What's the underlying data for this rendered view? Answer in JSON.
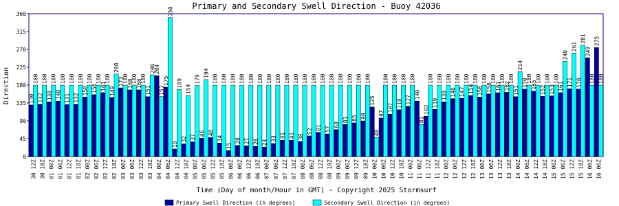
{
  "chart_data": {
    "type": "bar",
    "title": "Primary and Secondary Swell Direction - Buoy 42036",
    "x_label": "Time (Day of month/Hour in GMT) - Copyright 2025 Stormsurf",
    "y_label": "Direction",
    "categories": [
      "30 12Z",
      "30 18Z",
      "01 00Z",
      "01 06Z",
      "01 12Z",
      "01 18Z",
      "02 00Z",
      "02 06Z",
      "02 12Z",
      "02 18Z",
      "03 00Z",
      "03 06Z",
      "03 12Z",
      "03 18Z",
      "04 00Z",
      "04 06Z",
      "04 12Z",
      "04 18Z",
      "05 00Z",
      "05 06Z",
      "05 12Z",
      "05 18Z",
      "06 00Z",
      "06 06Z",
      "06 12Z",
      "06 18Z",
      "07 00Z",
      "07 06Z",
      "07 12Z",
      "07 18Z",
      "08 00Z",
      "08 06Z",
      "08 12Z",
      "08 18Z",
      "09 00Z",
      "09 06Z",
      "09 12Z",
      "09 18Z",
      "10 00Z",
      "10 06Z",
      "10 12Z",
      "10 18Z",
      "11 00Z",
      "11 06Z",
      "11 12Z",
      "11 18Z",
      "12 00Z",
      "12 06Z",
      "12 12Z",
      "12 18Z",
      "13 00Z",
      "13 06Z",
      "13 12Z",
      "13 18Z",
      "14 00Z",
      "14 06Z",
      "14 12Z",
      "14 18Z",
      "15 00Z",
      "15 06Z",
      "15 12Z",
      "15 18Z",
      "16 00Z",
      "16 06Z"
    ],
    "series": [
      {
        "name": "Primary Swell Direction (in degrees)",
        "color": "#00009c",
        "values": [
          130,
          132,
          138,
          140,
          131,
          132,
          150,
          156,
          161,
          149,
          173,
          168,
          168,
          151,
          204,
          175,
          19,
          32,
          37,
          46,
          48,
          34,
          15,
          28,
          27,
          26,
          24,
          33,
          41,
          41,
          38,
          52,
          61,
          57,
          68,
          81,
          85,
          90,
          125,
          97,
          107,
          118,
          127,
          140,
          102,
          119,
          138,
          146,
          147,
          154,
          150,
          158,
          161,
          162,
          151,
          170,
          165,
          152,
          153,
          161,
          171,
          170,
          249,
          275
        ]
      },
      {
        "name": "Secondary Swell Direction (in degrees)",
        "color": "#00ffff",
        "values": [
          180,
          180,
          180,
          180,
          180,
          180,
          180,
          180,
          180,
          208,
          180,
          180,
          180,
          206,
          151,
          350,
          169,
          154,
          179,
          194,
          180,
          180,
          180,
          180,
          180,
          180,
          180,
          180,
          180,
          180,
          180,
          180,
          180,
          180,
          180,
          180,
          180,
          180,
          48,
          180,
          180,
          180,
          180,
          81,
          180,
          180,
          180,
          180,
          180,
          180,
          180,
          180,
          180,
          180,
          214,
          180,
          180,
          180,
          180,
          240,
          261,
          281,
          180,
          180
        ]
      }
    ],
    "ylim": [
      0,
      360
    ],
    "yticks": [
      0,
      45,
      90,
      135,
      180,
      225,
      270,
      315,
      360
    ]
  }
}
